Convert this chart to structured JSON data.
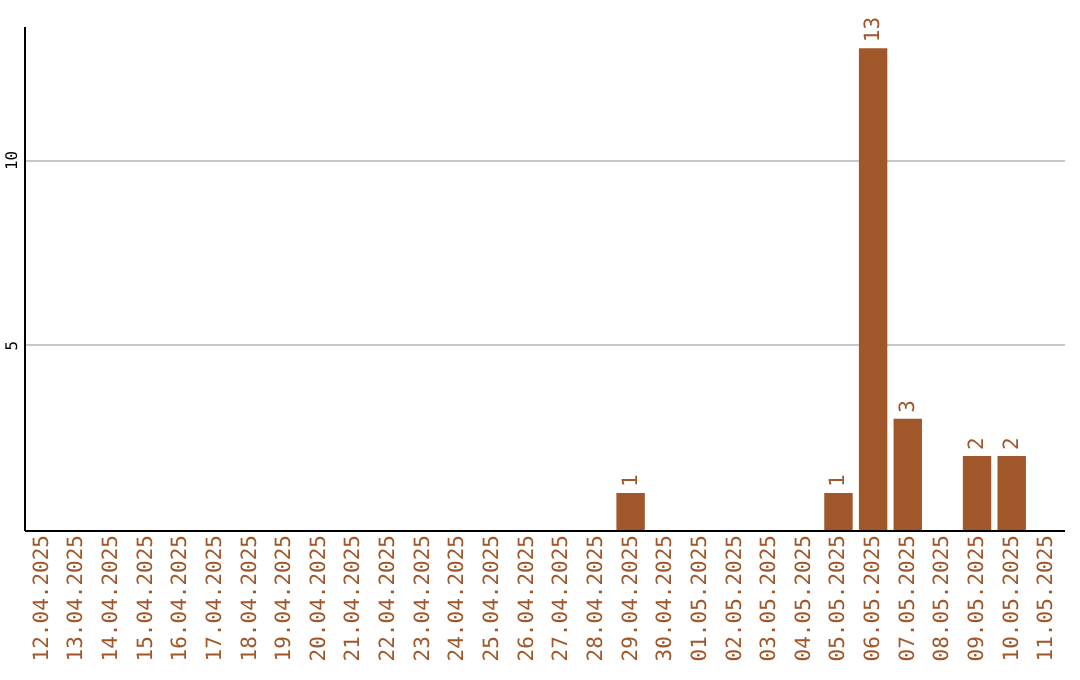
{
  "chart_data": {
    "type": "bar",
    "categories": [
      "12.04.2025",
      "13.04.2025",
      "14.04.2025",
      "15.04.2025",
      "16.04.2025",
      "17.04.2025",
      "18.04.2025",
      "19.04.2025",
      "20.04.2025",
      "21.04.2025",
      "22.04.2025",
      "23.04.2025",
      "24.04.2025",
      "25.04.2025",
      "26.04.2025",
      "27.04.2025",
      "28.04.2025",
      "29.04.2025",
      "30.04.2025",
      "01.05.2025",
      "02.05.2025",
      "03.05.2025",
      "04.05.2025",
      "05.05.2025",
      "06.05.2025",
      "07.05.2025",
      "08.05.2025",
      "09.05.2025",
      "10.05.2025",
      "11.05.2025"
    ],
    "values": [
      0,
      0,
      0,
      0,
      0,
      0,
      0,
      0,
      0,
      0,
      0,
      0,
      0,
      0,
      0,
      0,
      0,
      1,
      0,
      0,
      0,
      0,
      0,
      1,
      13,
      3,
      0,
      2,
      2,
      0
    ],
    "value_labels": [
      null,
      null,
      null,
      null,
      null,
      null,
      null,
      null,
      null,
      null,
      null,
      null,
      null,
      null,
      null,
      null,
      null,
      "1",
      null,
      null,
      null,
      null,
      null,
      "1",
      "13",
      "3",
      null,
      "2",
      "2",
      null
    ],
    "color": "#a0572a",
    "ylim": [
      0,
      13.6
    ],
    "yticks": [
      5,
      10
    ],
    "grid": "y"
  }
}
